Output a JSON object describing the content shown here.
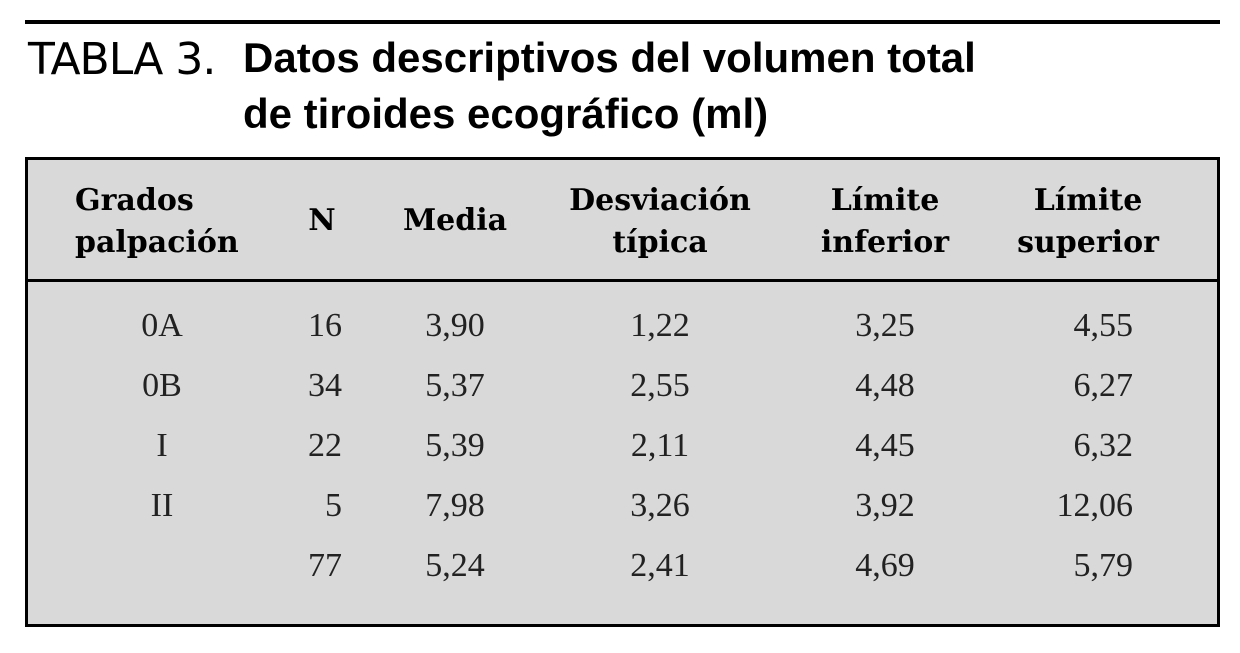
{
  "caption": {
    "label": "TABLA 3.",
    "title_lines": [
      "Datos descriptivos del volumen total",
      "de tiroides ecográfico (ml)"
    ]
  },
  "table": {
    "headers": [
      [
        "Grados",
        "palpación"
      ],
      [
        "N"
      ],
      [
        "Media"
      ],
      [
        "Desviación",
        "típica"
      ],
      [
        "Límite",
        "inferior"
      ],
      [
        "Límite",
        "superior"
      ]
    ],
    "rows": [
      [
        "0A",
        "16",
        "3,90",
        "1,22",
        "3,25",
        "4,55"
      ],
      [
        "0B",
        "34",
        "5,37",
        "2,55",
        "4,48",
        "6,27"
      ],
      [
        "I",
        "22",
        "5,39",
        "2,11",
        "4,45",
        "6,32"
      ],
      [
        "II",
        "5",
        "7,98",
        "3,26",
        "3,92",
        "12,06"
      ],
      [
        null,
        "77",
        "5,24",
        "2,41",
        "4,69",
        "5,79"
      ]
    ]
  }
}
